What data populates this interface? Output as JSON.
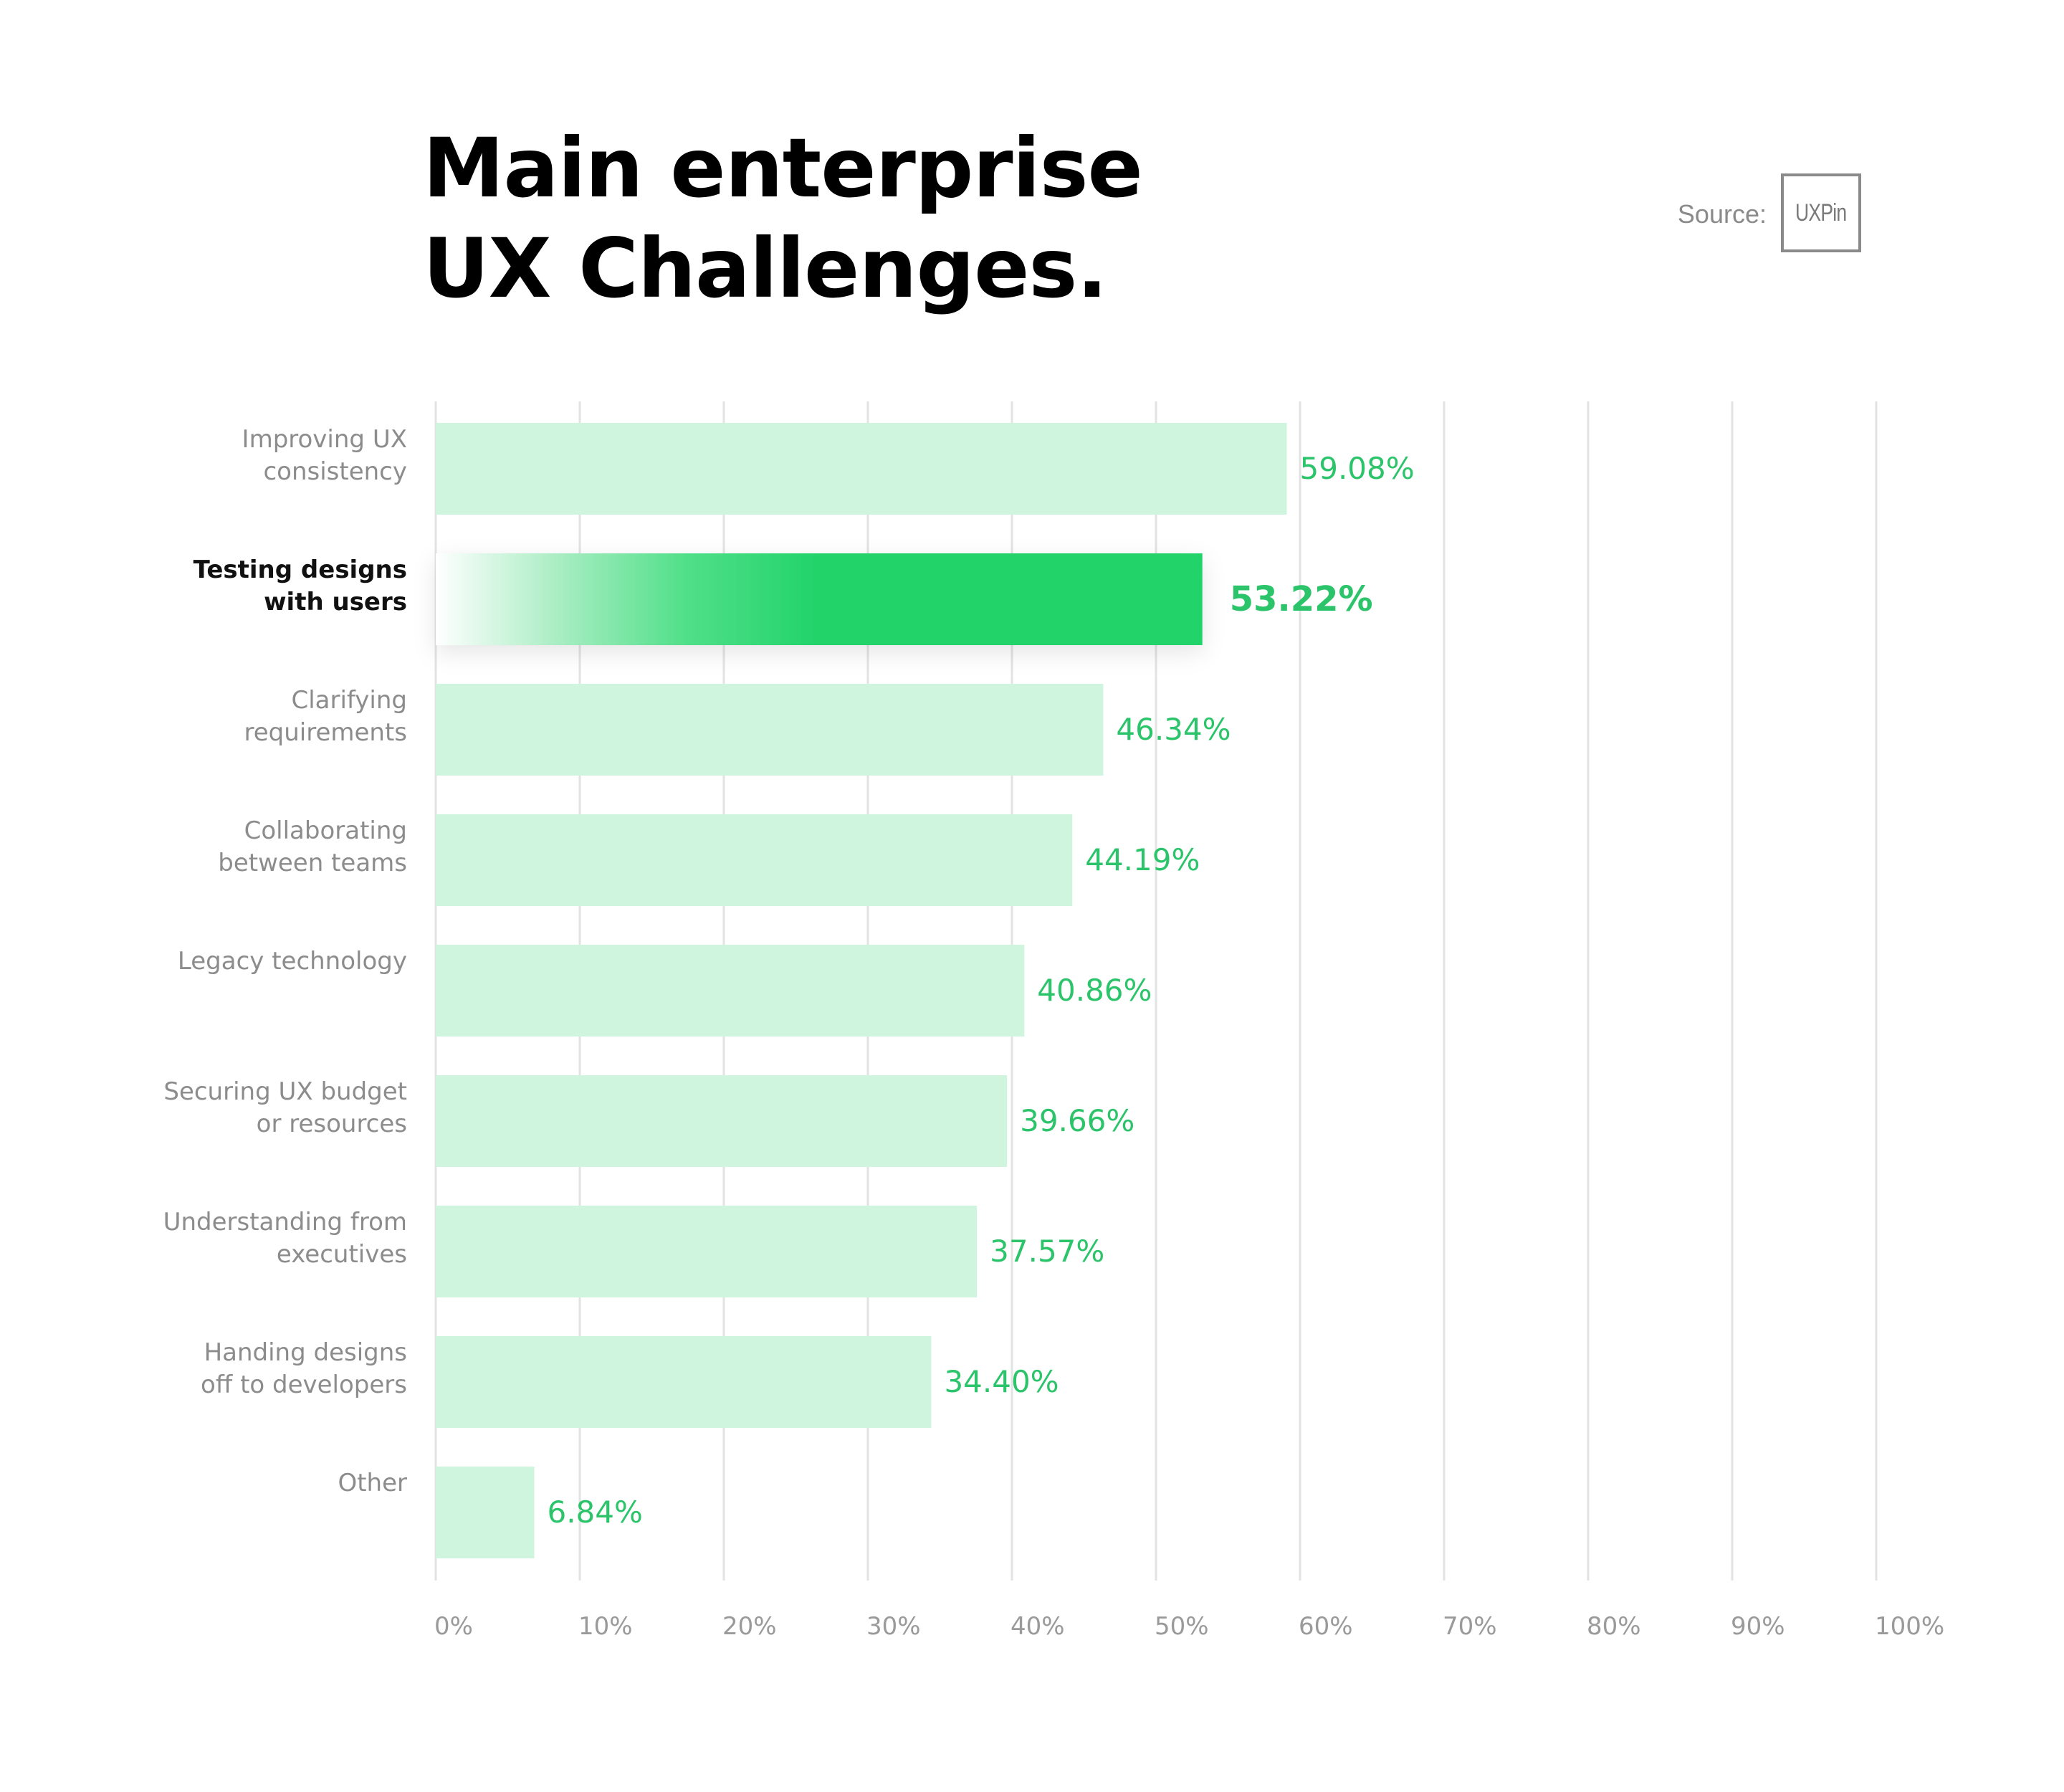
{
  "title_line1": "Main enterprise",
  "title_line2": "UX Challenges.",
  "source": {
    "label": "Source:",
    "logo_text": "UXPin"
  },
  "colors": {
    "bar": "#cff5de",
    "bar_highlight": "#22d36a",
    "value_text": "#2cc46a",
    "gridline": "#e3e3e3",
    "label_text": "#8c8c8c"
  },
  "chart_data": {
    "type": "bar",
    "orientation": "horizontal",
    "title": "Main enterprise UX Challenges.",
    "categories": [
      [
        "Improving UX",
        "consistency"
      ],
      [
        "Testing designs",
        "with users"
      ],
      [
        "Clarifying",
        "requirements"
      ],
      [
        "Collaborating",
        "between teams"
      ],
      [
        "Legacy technology"
      ],
      [
        "Securing UX budget",
        "or resources"
      ],
      [
        "Understanding from",
        "executives"
      ],
      [
        "Handing designs",
        "off to developers"
      ],
      [
        "Other"
      ]
    ],
    "values": [
      59.08,
      53.22,
      46.34,
      44.19,
      40.86,
      39.66,
      37.57,
      34.4,
      6.84
    ],
    "value_labels": [
      "59.08%",
      "53.22%",
      "46.34%",
      "44.19%",
      "40.86%",
      "39.66%",
      "37.57%",
      "34.40%",
      "6.84%"
    ],
    "highlight_index": 1,
    "xlim": [
      0,
      100
    ],
    "xticks": [
      0,
      10,
      20,
      30,
      40,
      50,
      60,
      70,
      80,
      90,
      100
    ],
    "xtick_labels": [
      "0%",
      "10%",
      "20%",
      "30%",
      "40%",
      "50%",
      "60%",
      "70%",
      "80%",
      "90%",
      "100%"
    ],
    "grid": true
  }
}
